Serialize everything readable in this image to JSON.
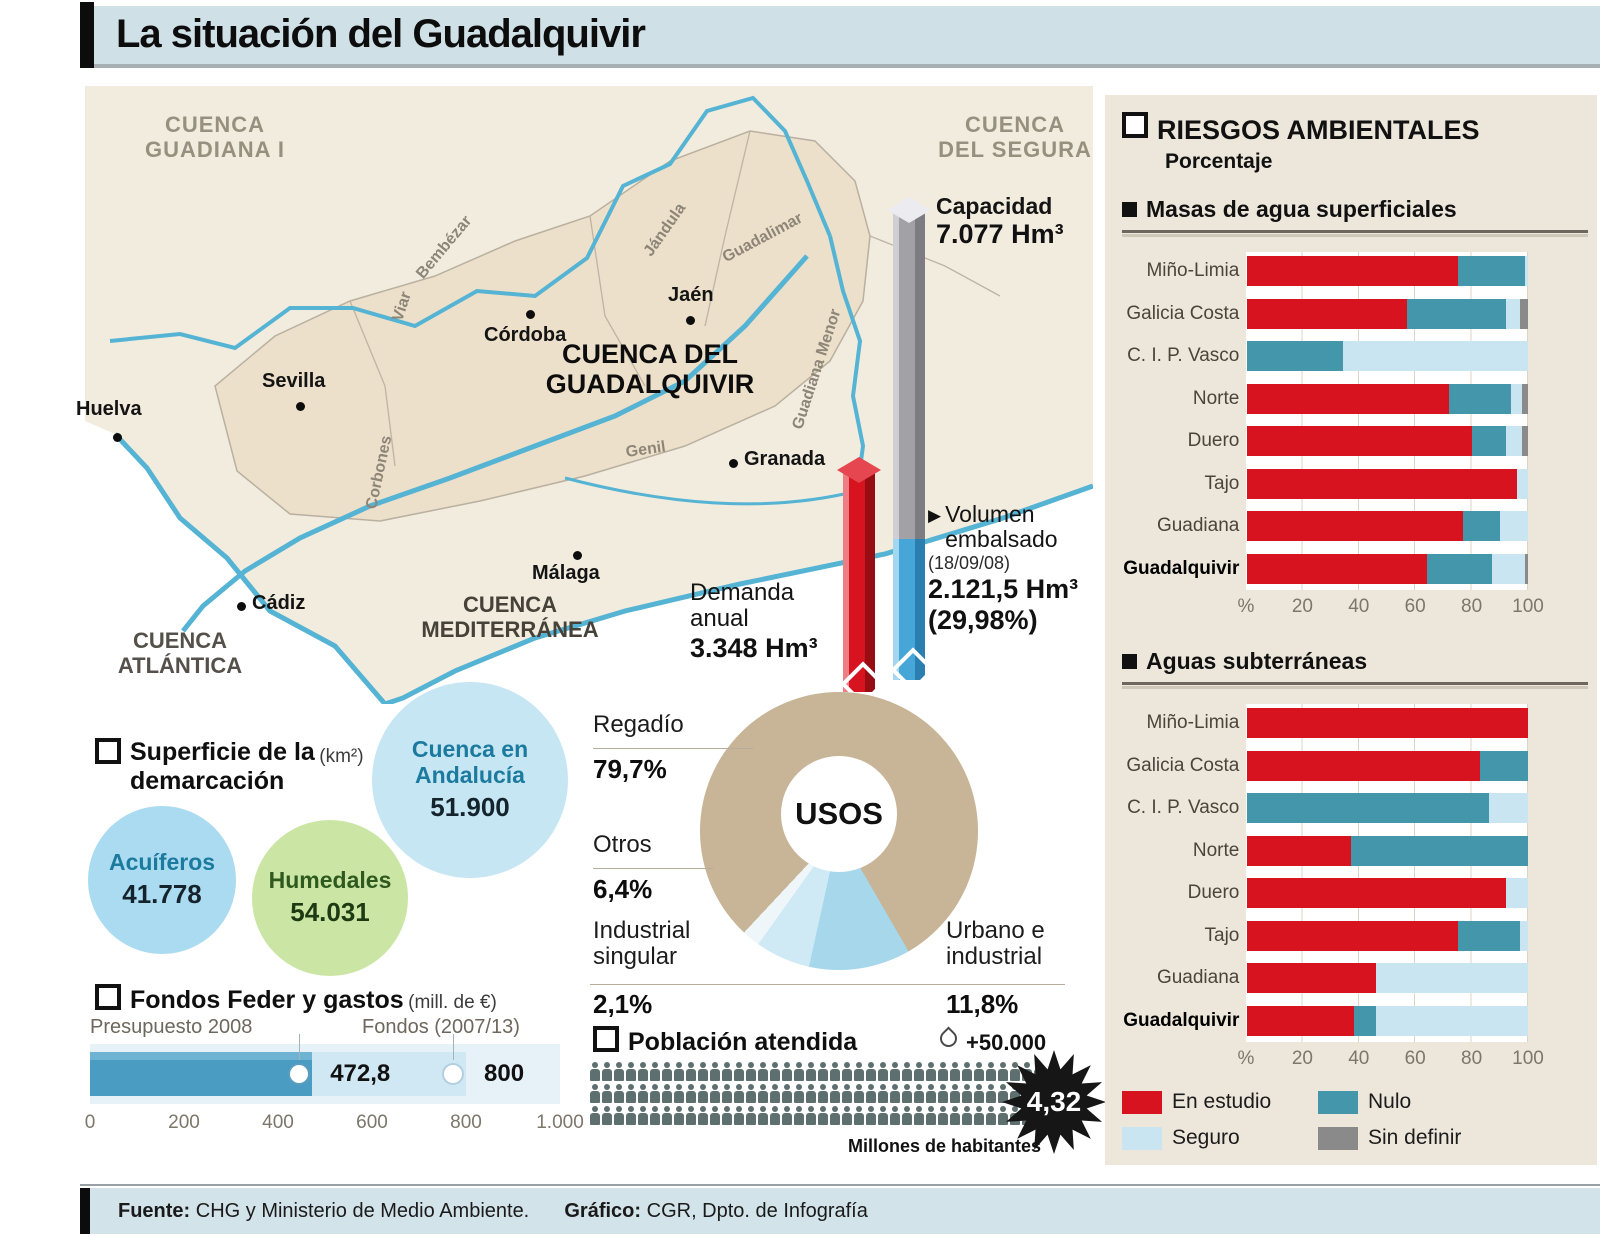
{
  "header": {
    "title": "La situación del Guadalquivir"
  },
  "map": {
    "basin_labels": {
      "guadiana": "CUENCA\nGUADIANA I",
      "segura": "CUENCA\nDEL SEGURA",
      "guadalquivir": "CUENCA DEL\nGUADALQUIVIR",
      "mediterranea": "CUENCA\nMEDITERRÁNEA",
      "atlantica": "CUENCA\nATLÁNTICA"
    },
    "cities": [
      "Huelva",
      "Sevilla",
      "Córdoba",
      "Jaén",
      "Granada",
      "Málaga",
      "Cádiz"
    ],
    "rivers": [
      "Viar",
      "Bembézar",
      "Jándula",
      "Guadalimar",
      "Corbones",
      "Genil",
      "Guadiana Menor"
    ]
  },
  "reservoir": {
    "capacity_label": "Capacidad",
    "capacity_value": "7.077 Hm³",
    "volume_label": "Volumen\nembalsado",
    "volume_date": "(18/09/08)",
    "volume_value": "2.121,5 Hm³",
    "volume_pct": "(29,98%)",
    "demand_label": "Demanda\nanual",
    "demand_value": "3.348 Hm³"
  },
  "superficie": {
    "title": "Superficie de la\ndemarcación",
    "units": "(km²)",
    "circles": [
      {
        "label": "Cuenca en\nAndalucía",
        "value": "51.900"
      },
      {
        "label": "Acuíferos",
        "value": "41.778"
      },
      {
        "label": "Humedales",
        "value": "54.031"
      }
    ]
  },
  "usos": {
    "center_label": "USOS",
    "labels": [
      {
        "name": "Regadío",
        "pct": "79,7%"
      },
      {
        "name": "Otros",
        "pct": "6,4%"
      },
      {
        "name": "Industrial\nsingular",
        "pct": "2,1%"
      },
      {
        "name": "Urbano e\nindustrial",
        "pct": "11,8%"
      }
    ]
  },
  "fondos": {
    "title": "Fondos Feder y gastos",
    "units": "(mill. de €)",
    "bar1_label": "Presupuesto 2008",
    "bar1_value": "472,8",
    "bar2_label": "Fondos (2007/13)",
    "bar2_value": "800"
  },
  "poblacion": {
    "title": "Población atendida",
    "unit_label": "+50.000",
    "badge_value": "4,32",
    "caption": "Millones de habitantes"
  },
  "panel": {
    "title": "RIESGOS AMBIENTALES",
    "subtitle": "Porcentaje",
    "section_surface": "Masas de agua superficiales",
    "section_ground": "Aguas subterráneas",
    "legend": [
      {
        "label": "En estudio",
        "color": "#d6131f"
      },
      {
        "label": "Nulo",
        "color": "#4496ab"
      },
      {
        "label": "Seguro",
        "color": "#c9e5f2"
      },
      {
        "label": "Sin definir",
        "color": "#8a8a8a"
      }
    ]
  },
  "footer": {
    "source_label": "Fuente:",
    "source_text": " CHG y Ministerio de Medio Ambiente.",
    "credit_label": "Gráfico:",
    "credit_text": " CGR, Dpto. de Infografía"
  },
  "chart_data": {
    "surface": {
      "type": "bar",
      "title": "Masas de agua superficiales",
      "categories": [
        "Miño-Limia",
        "Galicia Costa",
        "C. I. P. Vasco",
        "Norte",
        "Duero",
        "Tajo",
        "Guadiana",
        "Guadalquivir"
      ],
      "series": [
        {
          "name": "En estudio",
          "color": "#d6131f",
          "values": [
            75,
            57,
            0,
            72,
            80,
            96,
            77,
            64
          ]
        },
        {
          "name": "Nulo",
          "color": "#4496ab",
          "values": [
            24,
            35,
            34,
            22,
            12,
            0,
            13,
            23
          ]
        },
        {
          "name": "Seguro",
          "color": "#c9e5f2",
          "values": [
            1,
            5,
            66,
            4,
            6,
            4,
            10,
            12
          ]
        },
        {
          "name": "Sin definir",
          "color": "#8a8a8a",
          "values": [
            0,
            3,
            0,
            2,
            2,
            0,
            0,
            1
          ]
        }
      ],
      "xlabel": "%",
      "xlim": [
        0,
        100
      ],
      "xticks": [
        "%",
        "20",
        "40",
        "60",
        "80",
        "100"
      ]
    },
    "ground": {
      "type": "bar",
      "title": "Aguas subterráneas",
      "categories": [
        "Miño-Limia",
        "Galicia Costa",
        "C. I. P. Vasco",
        "Norte",
        "Duero",
        "Tajo",
        "Guadiana",
        "Guadalquivir"
      ],
      "series": [
        {
          "name": "En estudio",
          "color": "#d6131f",
          "values": [
            100,
            83,
            0,
            37,
            92,
            75,
            46,
            38
          ]
        },
        {
          "name": "Nulo",
          "color": "#4496ab",
          "values": [
            0,
            17,
            86,
            63,
            0,
            22,
            0,
            8
          ]
        },
        {
          "name": "Seguro",
          "color": "#c9e5f2",
          "values": [
            0,
            0,
            14,
            0,
            8,
            3,
            54,
            54
          ]
        },
        {
          "name": "Sin definir",
          "color": "#8a8a8a",
          "values": [
            0,
            0,
            0,
            0,
            0,
            0,
            0,
            0
          ]
        }
      ],
      "xlabel": "%",
      "xlim": [
        0,
        100
      ],
      "xticks": [
        "%",
        "20",
        "40",
        "60",
        "80",
        "100"
      ]
    },
    "usos": {
      "type": "pie",
      "title": "USOS",
      "slices": [
        {
          "label": "Regadío",
          "value": 79.7,
          "color": "#c8b496"
        },
        {
          "label": "Urbano e industrial",
          "value": 11.8,
          "color": "#a6d7eb"
        },
        {
          "label": "Otros",
          "value": 6.4,
          "color": "#cfe9f5"
        },
        {
          "label": "Industrial singular",
          "value": 2.1,
          "color": "#eef6fa"
        }
      ]
    },
    "fondos": {
      "type": "bar",
      "title": "Fondos Feder y gastos (mill. de €)",
      "max": 1000,
      "bars": [
        {
          "label": "Presupuesto 2008",
          "value": 472.8,
          "color": "#4a9cc3"
        },
        {
          "label": "Fondos (2007/13)",
          "value": 800,
          "color": "#cfe8f4"
        }
      ],
      "xticks": [
        "0",
        "200",
        "400",
        "600",
        "800",
        "1.000"
      ]
    },
    "reservoir": {
      "type": "bar",
      "units": "Hm³",
      "capacity": 7077,
      "volume_embalsado": 2121.5,
      "volume_pct": 29.98,
      "volume_date": "18/09/08",
      "demanda_anual": 3348
    },
    "poblacion": {
      "icon_unit_habitants": 50000,
      "total_millions": 4.32
    }
  }
}
